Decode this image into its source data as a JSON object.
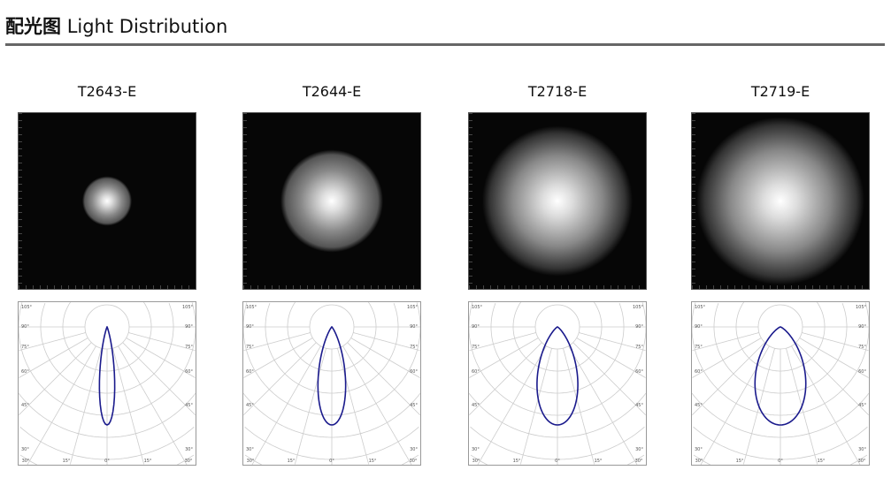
{
  "header": {
    "title_cn": "配光图",
    "title_en": "Light Distribution"
  },
  "polar_labels": {
    "left": [
      "105°",
      "90°",
      "75°",
      "60°",
      "45°",
      "30°"
    ],
    "bottom": [
      "30°",
      "15°",
      "0°",
      "15°",
      "30°"
    ]
  },
  "line_color": "#1a1a8c",
  "products": [
    {
      "name": "T2643-E",
      "spot_size": 0.28,
      "noise": false,
      "lobe_exponent": 60
    },
    {
      "name": "T2644-E",
      "spot_size": 0.58,
      "noise": false,
      "lobe_exponent": 18
    },
    {
      "name": "T2718-E",
      "spot_size": 0.85,
      "noise": true,
      "lobe_exponent": 8
    },
    {
      "name": "T2719-E",
      "spot_size": 0.95,
      "noise": true,
      "lobe_exponent": 5
    }
  ]
}
